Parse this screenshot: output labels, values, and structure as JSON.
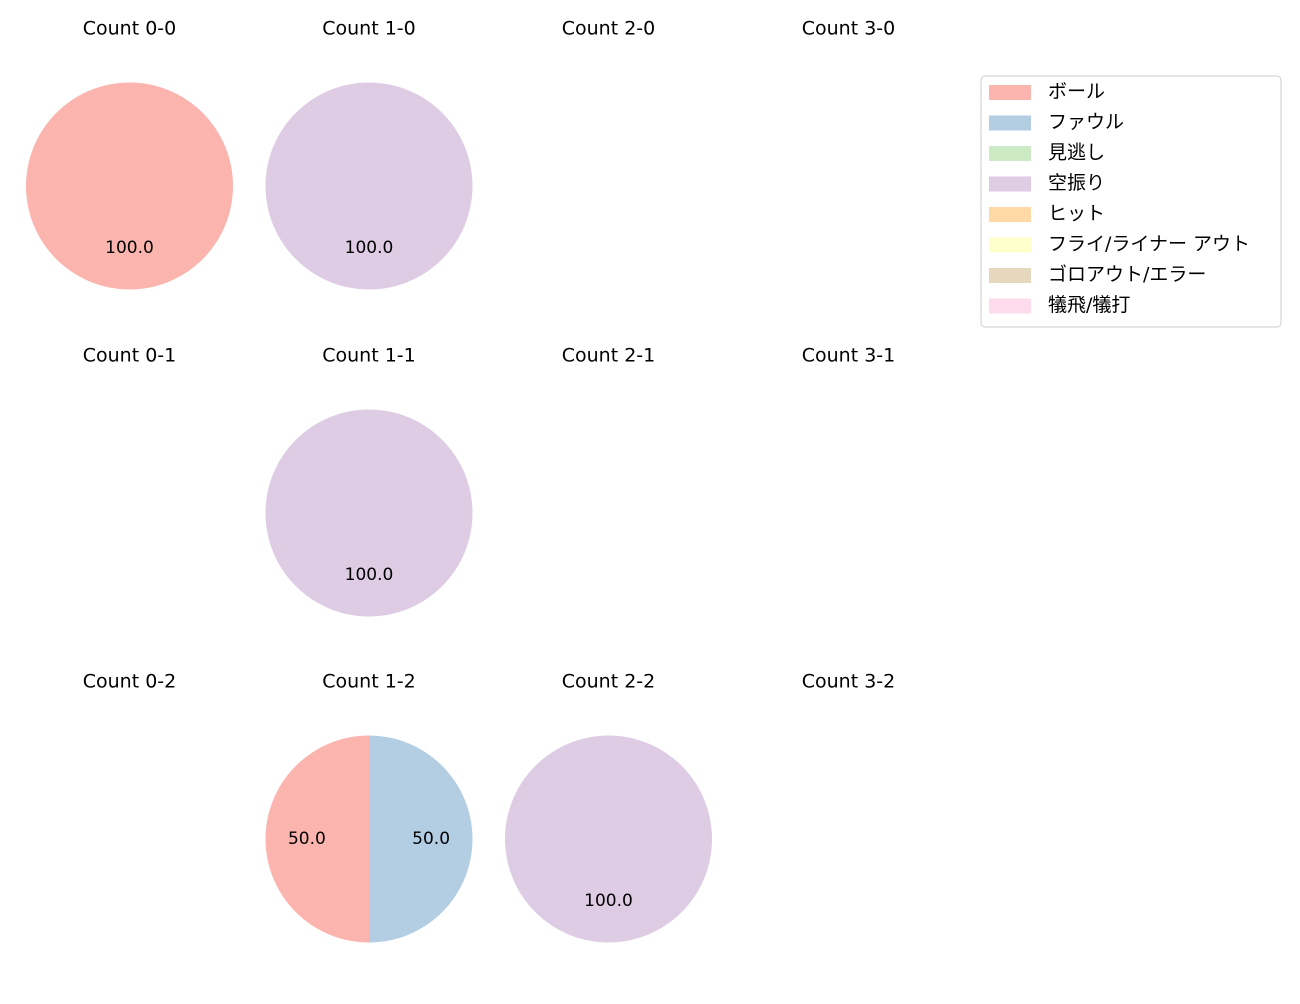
{
  "chart_data": {
    "type": "pie",
    "value_format": "percent, one decimal",
    "legend": {
      "placement": "top-right",
      "entries": [
        {
          "label": "ボール",
          "color": "#fbb4ae"
        },
        {
          "label": "ファウル",
          "color": "#b3cde3"
        },
        {
          "label": "見逃し",
          "color": "#ccebc5"
        },
        {
          "label": "空振り",
          "color": "#decbe4"
        },
        {
          "label": "ヒット",
          "color": "#fed9a6"
        },
        {
          "label": "フライ/ライナー アウト",
          "color": "#ffffcc"
        },
        {
          "label": "ゴロアウト/エラー",
          "color": "#e5d8bd"
        },
        {
          "label": "犠飛/犠打",
          "color": "#fddaec"
        }
      ]
    },
    "panels": [
      {
        "title": "Count 0-0",
        "slices": [
          {
            "category": "ボール",
            "value": 100.0
          }
        ]
      },
      {
        "title": "Count 1-0",
        "slices": [
          {
            "category": "空振り",
            "value": 100.0
          }
        ]
      },
      {
        "title": "Count 2-0",
        "slices": []
      },
      {
        "title": "Count 3-0",
        "slices": []
      },
      {
        "title": "Count 0-1",
        "slices": []
      },
      {
        "title": "Count 1-1",
        "slices": [
          {
            "category": "空振り",
            "value": 100.0
          }
        ]
      },
      {
        "title": "Count 2-1",
        "slices": []
      },
      {
        "title": "Count 3-1",
        "slices": []
      },
      {
        "title": "Count 0-2",
        "slices": []
      },
      {
        "title": "Count 1-2",
        "slices": [
          {
            "category": "ボール",
            "value": 50.0
          },
          {
            "category": "ファウル",
            "value": 50.0
          }
        ]
      },
      {
        "title": "Count 2-2",
        "slices": [
          {
            "category": "空振り",
            "value": 100.0
          }
        ]
      },
      {
        "title": "Count 3-2",
        "slices": []
      }
    ]
  }
}
